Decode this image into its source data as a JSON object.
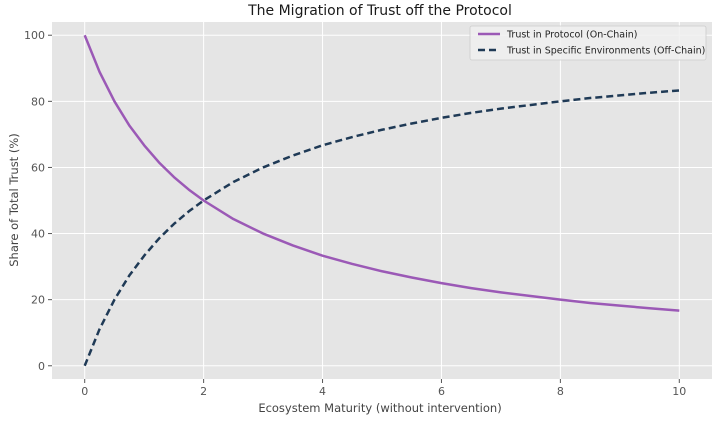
{
  "chart_data": {
    "type": "line",
    "title": "The Migration of Trust off the Protocol",
    "xlabel": "Ecosystem Maturity (without intervention)",
    "ylabel": "Share of Total Trust (%)",
    "xlim": [
      -0.55,
      10.55
    ],
    "ylim": [
      -4,
      104
    ],
    "xticks": [
      0,
      2,
      4,
      6,
      8,
      10
    ],
    "xtick_labels": [
      "0",
      "2",
      "4",
      "6",
      "8",
      "10"
    ],
    "yticks": [
      0,
      20,
      40,
      60,
      80,
      100
    ],
    "ytick_labels": [
      "0",
      "20",
      "40",
      "60",
      "80",
      "100"
    ],
    "grid": true,
    "legend_position": "top-right",
    "background": "#e5e5e5",
    "series": [
      {
        "name": "Trust in Protocol (On-Chain)",
        "color": "#9b59b6",
        "style": "solid",
        "x": [
          0,
          0.25,
          0.5,
          0.75,
          1,
          1.25,
          1.5,
          1.75,
          2,
          2.5,
          3,
          3.5,
          4,
          4.5,
          5,
          5.5,
          6,
          6.5,
          7,
          7.5,
          8,
          8.5,
          9,
          9.5,
          10
        ],
        "y": [
          100,
          88.9,
          80,
          72.7,
          66.7,
          61.5,
          57.1,
          53.3,
          50,
          44.4,
          40,
          36.4,
          33.3,
          30.8,
          28.6,
          26.7,
          25,
          23.5,
          22.2,
          21.1,
          20,
          19,
          18.2,
          17.4,
          16.7
        ]
      },
      {
        "name": "Trust in Specific Environments (Off-Chain)",
        "color": "#1f3a56",
        "style": "dashed",
        "x": [
          0,
          0.25,
          0.5,
          0.75,
          1,
          1.25,
          1.5,
          1.75,
          2,
          2.5,
          3,
          3.5,
          4,
          4.5,
          5,
          5.5,
          6,
          6.5,
          7,
          7.5,
          8,
          8.5,
          9,
          9.5,
          10
        ],
        "y": [
          0,
          11.1,
          20,
          27.3,
          33.3,
          38.5,
          42.9,
          46.7,
          50,
          55.6,
          60,
          63.6,
          66.7,
          69.2,
          71.4,
          73.3,
          75,
          76.5,
          77.8,
          78.9,
          80,
          81,
          81.8,
          82.6,
          83.3
        ]
      }
    ]
  }
}
